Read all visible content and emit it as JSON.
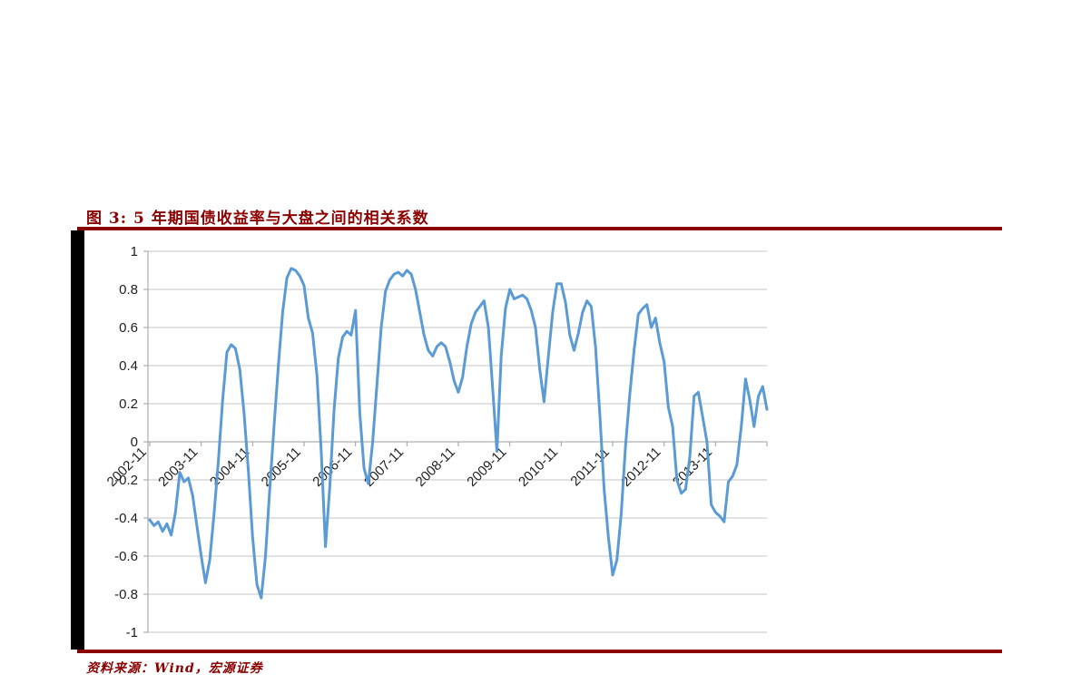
{
  "figure": {
    "title": "图 3: 5 年期国债收益率与大盘之间的相关系数",
    "source": "资料来源：Wind，宏源证券",
    "accent_color": "#8B0000",
    "line_color": "#5B9BD5",
    "grid_color": "#C6C6C6",
    "axis_color": "#9D9D9D",
    "label_color": "#1F1F1F"
  },
  "chart_data": {
    "type": "line",
    "title": "5 年期国债收益率与大盘之间的相关系数",
    "xlabel": "",
    "ylabel": "",
    "ylim": [
      -1,
      1
    ],
    "grid": true,
    "legend": false,
    "x_start": "2002-11",
    "x_end": "2014-11",
    "x_tick_interval_months": 12,
    "x_tick_labels": [
      "2002-11",
      "2003-11",
      "2004-11",
      "2005-11",
      "2006-11",
      "2007-11",
      "2008-11",
      "2009-11",
      "2010-11",
      "2011-11",
      "2012-11",
      "2013-11"
    ],
    "y_tick_labels": [
      "1",
      "0.8",
      "0.6",
      "0.4",
      "0.2",
      "0",
      "-0.2",
      "-0.4",
      "-0.6",
      "-0.8",
      "-1"
    ],
    "series": [
      {
        "name": "相关系数",
        "values": [
          -0.41,
          -0.44,
          -0.42,
          -0.47,
          -0.43,
          -0.49,
          -0.37,
          -0.16,
          -0.21,
          -0.19,
          -0.28,
          -0.44,
          -0.6,
          -0.74,
          -0.62,
          -0.38,
          -0.1,
          0.22,
          0.47,
          0.51,
          0.49,
          0.38,
          0.15,
          -0.15,
          -0.5,
          -0.75,
          -0.82,
          -0.6,
          -0.25,
          0.08,
          0.4,
          0.68,
          0.86,
          0.91,
          0.9,
          0.87,
          0.82,
          0.65,
          0.57,
          0.35,
          -0.05,
          -0.55,
          -0.24,
          0.17,
          0.44,
          0.55,
          0.58,
          0.56,
          0.69,
          0.15,
          -0.14,
          -0.22,
          0.0,
          0.3,
          0.6,
          0.79,
          0.85,
          0.88,
          0.89,
          0.87,
          0.9,
          0.88,
          0.8,
          0.68,
          0.56,
          0.48,
          0.45,
          0.5,
          0.52,
          0.5,
          0.42,
          0.32,
          0.26,
          0.34,
          0.5,
          0.62,
          0.68,
          0.71,
          0.74,
          0.6,
          0.28,
          -0.05,
          0.45,
          0.7,
          0.8,
          0.75,
          0.76,
          0.77,
          0.75,
          0.69,
          0.6,
          0.38,
          0.21,
          0.45,
          0.68,
          0.83,
          0.83,
          0.73,
          0.56,
          0.48,
          0.57,
          0.68,
          0.74,
          0.71,
          0.5,
          0.15,
          -0.25,
          -0.5,
          -0.7,
          -0.62,
          -0.38,
          -0.02,
          0.25,
          0.48,
          0.67,
          0.7,
          0.72,
          0.6,
          0.65,
          0.52,
          0.42,
          0.18,
          0.08,
          -0.2,
          -0.27,
          -0.25,
          -0.08,
          0.24,
          0.26,
          0.13,
          0.0,
          -0.33,
          -0.37,
          -0.39,
          -0.42,
          -0.21,
          -0.18,
          -0.12,
          0.08,
          0.33,
          0.22,
          0.08,
          0.24,
          0.29,
          0.17
        ]
      }
    ]
  }
}
